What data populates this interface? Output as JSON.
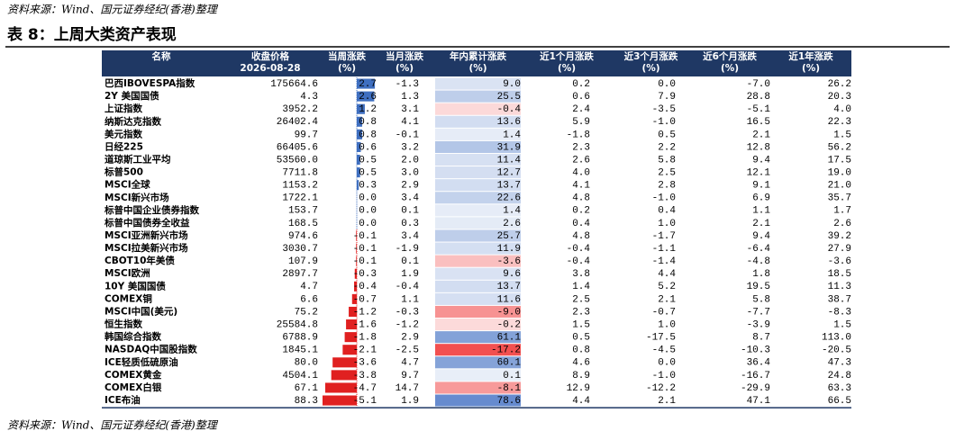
{
  "source_top": "资料来源：Wind、国元证券经纪(香港)整理",
  "title": "表 8：上周大类资产表现",
  "table": {
    "header": [
      [
        "名称"
      ],
      [
        "收盘价格",
        "2026-08-28"
      ],
      [
        "当周涨跌",
        "(%)"
      ],
      [
        "当月涨跌",
        "(%)"
      ],
      [
        "年内累计涨跌",
        "(%)"
      ],
      [
        "近1个月涨跌",
        "(%)"
      ],
      [
        "近3个月涨跌",
        "(%)"
      ],
      [
        "近6个月涨跌",
        "(%)"
      ],
      [
        "近1年涨跌",
        "(%)"
      ]
    ],
    "rows": [
      [
        "巴西IBOVESPA指数",
        "175664.6",
        "2.7",
        "-1.3",
        "9.0",
        "0.2",
        "0.0",
        "-7.0",
        "26.2"
      ],
      [
        "2Y 美国国债",
        "4.3",
        "2.6",
        "1.3",
        "25.5",
        "0.6",
        "7.9",
        "28.8",
        "20.3"
      ],
      [
        "上证指数",
        "3952.2",
        "1.2",
        "3.1",
        "-0.4",
        "2.4",
        "-3.5",
        "-5.1",
        "4.0"
      ],
      [
        "纳斯达克指数",
        "26402.4",
        "0.8",
        "4.1",
        "13.6",
        "5.9",
        "-1.0",
        "16.5",
        "22.3"
      ],
      [
        "美元指数",
        "99.7",
        "0.8",
        "-0.1",
        "1.4",
        "-1.8",
        "0.5",
        "2.1",
        "1.5"
      ],
      [
        "日经225",
        "66405.6",
        "0.6",
        "3.2",
        "31.9",
        "2.3",
        "2.2",
        "12.8",
        "56.2"
      ],
      [
        "道琼斯工业平均",
        "53560.0",
        "0.5",
        "2.0",
        "11.4",
        "2.6",
        "5.8",
        "9.4",
        "17.5"
      ],
      [
        "标普500",
        "7711.8",
        "0.5",
        "3.0",
        "12.7",
        "4.0",
        "2.5",
        "12.1",
        "19.0"
      ],
      [
        "MSCI全球",
        "1153.2",
        "0.3",
        "2.9",
        "13.7",
        "4.1",
        "2.8",
        "9.1",
        "21.0"
      ],
      [
        "MSCI新兴市场",
        "1722.1",
        "0.0",
        "3.4",
        "22.6",
        "4.8",
        "-1.0",
        "6.9",
        "35.7"
      ],
      [
        "标普中国企业债券指数",
        "153.7",
        "0.0",
        "0.1",
        "1.4",
        "0.2",
        "0.4",
        "1.1",
        "1.7"
      ],
      [
        "标普中国债券全收益",
        "168.5",
        "0.0",
        "0.3",
        "2.6",
        "0.4",
        "1.0",
        "2.1",
        "2.6"
      ],
      [
        "MSCI亚洲新兴市场",
        "974.6",
        "-0.1",
        "3.4",
        "25.7",
        "4.8",
        "-1.7",
        "9.4",
        "39.2"
      ],
      [
        "MSCI拉美新兴市场",
        "3030.7",
        "-0.1",
        "-1.9",
        "11.9",
        "-0.4",
        "-1.1",
        "-6.4",
        "27.9"
      ],
      [
        "CBOT10年美债",
        "107.9",
        "-0.1",
        "0.1",
        "-3.6",
        "-0.4",
        "-1.4",
        "-4.8",
        "-3.6"
      ],
      [
        "MSCI欧洲",
        "2897.7",
        "-0.3",
        "1.9",
        "9.6",
        "3.8",
        "4.4",
        "1.8",
        "18.5"
      ],
      [
        "10Y 美国国债",
        "4.7",
        "-0.4",
        "-0.4",
        "13.7",
        "1.4",
        "5.2",
        "19.5",
        "11.3"
      ],
      [
        "COMEX铜",
        "6.6",
        "-0.7",
        "1.1",
        "11.6",
        "2.5",
        "2.1",
        "5.8",
        "38.7"
      ],
      [
        "MSCI中国(美元)",
        "75.2",
        "-1.2",
        "-0.3",
        "-9.0",
        "2.3",
        "-0.7",
        "-7.7",
        "-8.3"
      ],
      [
        "恒生指数",
        "25584.8",
        "-1.6",
        "-1.2",
        "-0.2",
        "1.5",
        "1.0",
        "-3.9",
        "1.5"
      ],
      [
        "韩国综合指数",
        "6788.9",
        "-1.8",
        "2.9",
        "61.1",
        "0.5",
        "-17.5",
        "8.7",
        "113.0"
      ],
      [
        "NASDAQ中国股指数",
        "1845.1",
        "-2.1",
        "-2.5",
        "-17.2",
        "0.8",
        "-4.5",
        "-10.3",
        "-20.5"
      ],
      [
        "ICE轻质低硫原油",
        "80.0",
        "-3.6",
        "4.7",
        "60.1",
        "4.6",
        "0.0",
        "36.4",
        "47.3"
      ],
      [
        "COMEX黄金",
        "4504.1",
        "-3.8",
        "9.7",
        "0.1",
        "8.9",
        "-1.0",
        "-16.7",
        "24.8"
      ],
      [
        "COMEX白银",
        "67.1",
        "-4.7",
        "14.7",
        "-8.1",
        "12.9",
        "-12.2",
        "-29.9",
        "63.3"
      ],
      [
        "ICE布油",
        "88.3",
        "-5.1",
        "1.9",
        "78.6",
        "4.4",
        "2.1",
        "47.1",
        "66.5"
      ]
    ]
  },
  "source_bottom": "资料来源：Wind、国元证券经纪(香港)整理"
}
